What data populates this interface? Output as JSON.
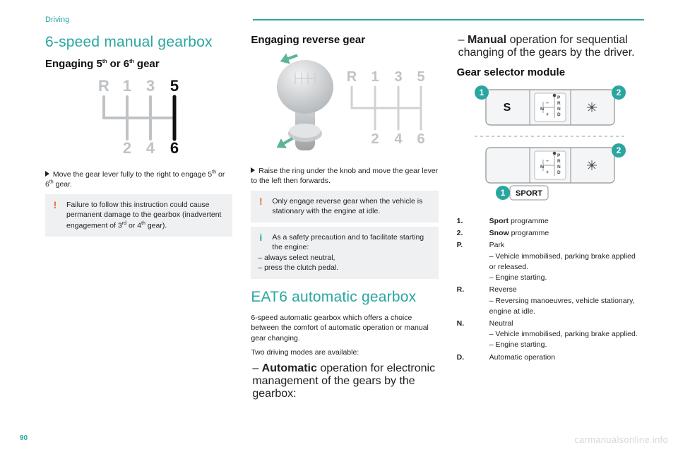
{
  "colors": {
    "teal": "#2aa6a0",
    "grey_box": "#eef0f1",
    "grey_text": "#9aa0a3",
    "grey_fig": "#bfc3c6",
    "black": "#111111",
    "orange": "#e96a2f",
    "watermark": "#d8d8d8",
    "knob_light": "#e6e7e8",
    "knob_dark": "#bcbfc2",
    "arrow_green": "#5fb29b"
  },
  "header": {
    "section": "Driving"
  },
  "col1": {
    "title": "6-speed manual gearbox",
    "subhead_html": "Engaging 5<sup>th</sup> or 6<sup>th</sup> gear",
    "gear_diagram": {
      "type": "diagram",
      "positions": [
        "R",
        "1",
        "2",
        "3",
        "4",
        "5",
        "6"
      ],
      "highlight": [
        "5",
        "6"
      ],
      "color_normal": "#bfc3c6",
      "color_highlight": "#111111",
      "fontsize": 20,
      "line_width": 4
    },
    "instruction_html": "Move the gear lever fully to the right to engage 5<sup>th</sup> or 6<sup>th</sup> gear.",
    "warn_html": "Failure to follow this instruction could cause permanent damage to the gearbox (inadvertent engagement of 3<sup>rd</sup> or 4<sup>th</sup> gear)."
  },
  "col2": {
    "subhead": "Engaging reverse gear",
    "reverse_image": {
      "type": "infographic",
      "knob_color_light": "#e6e7e8",
      "knob_color_dark": "#bcbfc2",
      "arrow_color": "#5fb29b",
      "labels": [
        "R",
        "1",
        "3",
        "5",
        "2",
        "4",
        "6"
      ],
      "label_color": "#bfc3c6",
      "label_fontsize": 18
    },
    "instruction": "Raise the ring under the knob and move the gear lever to the left then forwards.",
    "warn": "Only engage reverse gear when the vehicle is stationary with the engine at idle.",
    "info_lead": "As a safety precaution and to facilitate starting the engine:",
    "info_items": [
      "always select neutral,",
      "press the clutch pedal."
    ],
    "title2": "EAT6 automatic gearbox",
    "para1": "6-speed automatic gearbox which offers a choice between the comfort of automatic operation or manual gear changing.",
    "para2": "Two driving modes are available:",
    "mode_auto_html": "<b>Automatic</b> operation for electronic management of the gears by the gearbox:"
  },
  "col3": {
    "mode_manual_html": "<b>Manual</b> operation for sequential changing of the gears by the driver.",
    "subhead": "Gear selector module",
    "module_figure": {
      "type": "diagram",
      "callouts": [
        {
          "n": 1,
          "color": "#2aa6a0"
        },
        {
          "n": 2,
          "color": "#2aa6a0"
        }
      ],
      "variant_a_button": "S",
      "variant_b_button": "SPORT",
      "gate_labels": [
        "P",
        "R",
        "N",
        "D",
        "M"
      ],
      "gate_color": "#4a4a4a",
      "panel_fill": "#f4f5f6",
      "panel_stroke": "#8d9194",
      "button_fill": "#ffffff",
      "text_color": "#111111",
      "fontsize_small": 7,
      "fontsize_button": 12
    },
    "definitions": [
      {
        "key": "1.",
        "val_html": "<b>Sport</b> programme"
      },
      {
        "key": "2.",
        "val_html": "<b>Snow</b> programme"
      },
      {
        "key": "P.",
        "val_html": "Park",
        "subs": [
          "Vehicle immobilised, parking brake applied or released.",
          "Engine starting."
        ]
      },
      {
        "key": "R.",
        "val_html": "Reverse",
        "subs": [
          "Reversing manoeuvres, vehicle stationary, engine at idle."
        ]
      },
      {
        "key": "N.",
        "val_html": "Neutral",
        "subs": [
          "Vehicle immobilised, parking brake applied.",
          "Engine starting."
        ]
      },
      {
        "key": "D.",
        "val_html": "Automatic operation"
      }
    ]
  },
  "footer": {
    "page": "90",
    "watermark": "carmanualsonline.info"
  }
}
